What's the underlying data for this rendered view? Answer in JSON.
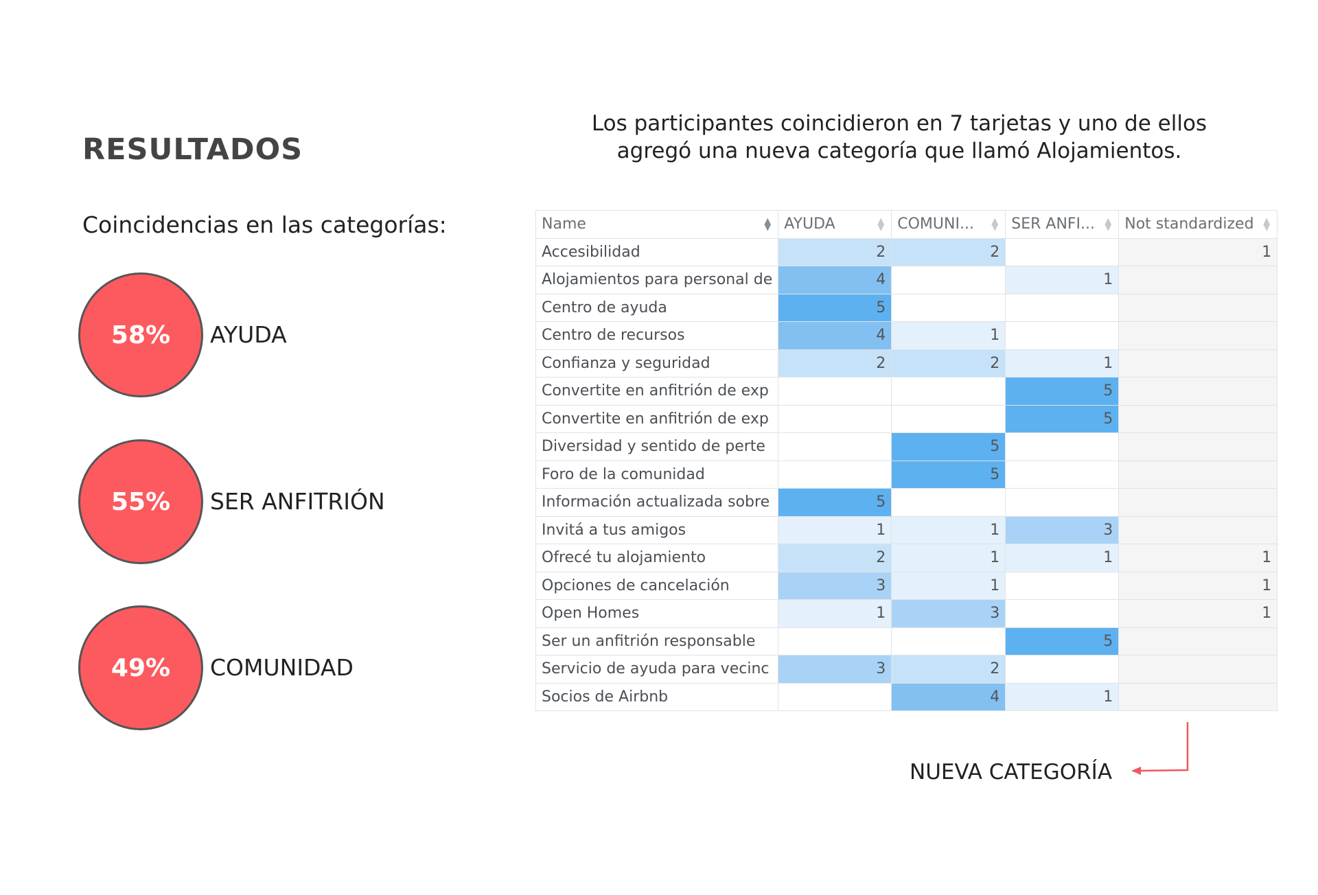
{
  "title": "RESULTADOS",
  "intro": "Los participantes coincidieron en 7 tarjetas y uno de ellos agregó una nueva categoría que llamó Alojamientos.",
  "subtitle": "Coincidencias en las categorías:",
  "results": [
    {
      "percent": "58%",
      "label": "AYUDA"
    },
    {
      "percent": "55%",
      "label": "SER ANFITRIÓN"
    },
    {
      "percent": "49%",
      "label": "COMUNIDAD"
    }
  ],
  "colors": {
    "circle_fill": "#fd5a5f",
    "shade_1": "#e4f1fc",
    "shade_2": "#c6e2f9",
    "shade_3": "#a9d3f6",
    "shade_4": "#82c0f2",
    "shade_5": "#5db1f0"
  },
  "table": {
    "headers": [
      "Name",
      "AYUDA",
      "COMUNI...",
      "SER ANFI...",
      "Not standardized"
    ],
    "rows": [
      {
        "name": "Accesibilidad",
        "values": [
          2,
          2,
          null,
          1
        ]
      },
      {
        "name": "Alojamientos para personal de",
        "values": [
          4,
          null,
          1,
          null
        ]
      },
      {
        "name": "Centro de ayuda",
        "values": [
          5,
          null,
          null,
          null
        ]
      },
      {
        "name": "Centro de recursos",
        "values": [
          4,
          1,
          null,
          null
        ]
      },
      {
        "name": "Confianza y seguridad",
        "values": [
          2,
          2,
          1,
          null
        ]
      },
      {
        "name": "Convertite en anfitrión de exp",
        "values": [
          null,
          null,
          5,
          null
        ]
      },
      {
        "name": "Convertite en anfitrión de exp",
        "values": [
          null,
          null,
          5,
          null
        ]
      },
      {
        "name": "Diversidad y sentido de perte",
        "values": [
          null,
          5,
          null,
          null
        ]
      },
      {
        "name": "Foro de la comunidad",
        "values": [
          null,
          5,
          null,
          null
        ]
      },
      {
        "name": "Información actualizada sobre",
        "values": [
          5,
          null,
          null,
          null
        ]
      },
      {
        "name": "Invitá a tus amigos",
        "values": [
          1,
          1,
          3,
          null
        ]
      },
      {
        "name": "Ofrecé tu alojamiento",
        "values": [
          2,
          1,
          1,
          1
        ]
      },
      {
        "name": "Opciones de cancelación",
        "values": [
          3,
          1,
          null,
          1
        ]
      },
      {
        "name": "Open Homes",
        "values": [
          1,
          3,
          null,
          1
        ]
      },
      {
        "name": "Ser un anfitrión responsable",
        "values": [
          null,
          null,
          5,
          null
        ]
      },
      {
        "name": "Servicio de ayuda para vecinc",
        "values": [
          3,
          2,
          null,
          null
        ]
      },
      {
        "name": "Socios de Airbnb",
        "values": [
          null,
          4,
          1,
          null
        ]
      }
    ]
  },
  "annotation": "NUEVA CATEGORÍA"
}
